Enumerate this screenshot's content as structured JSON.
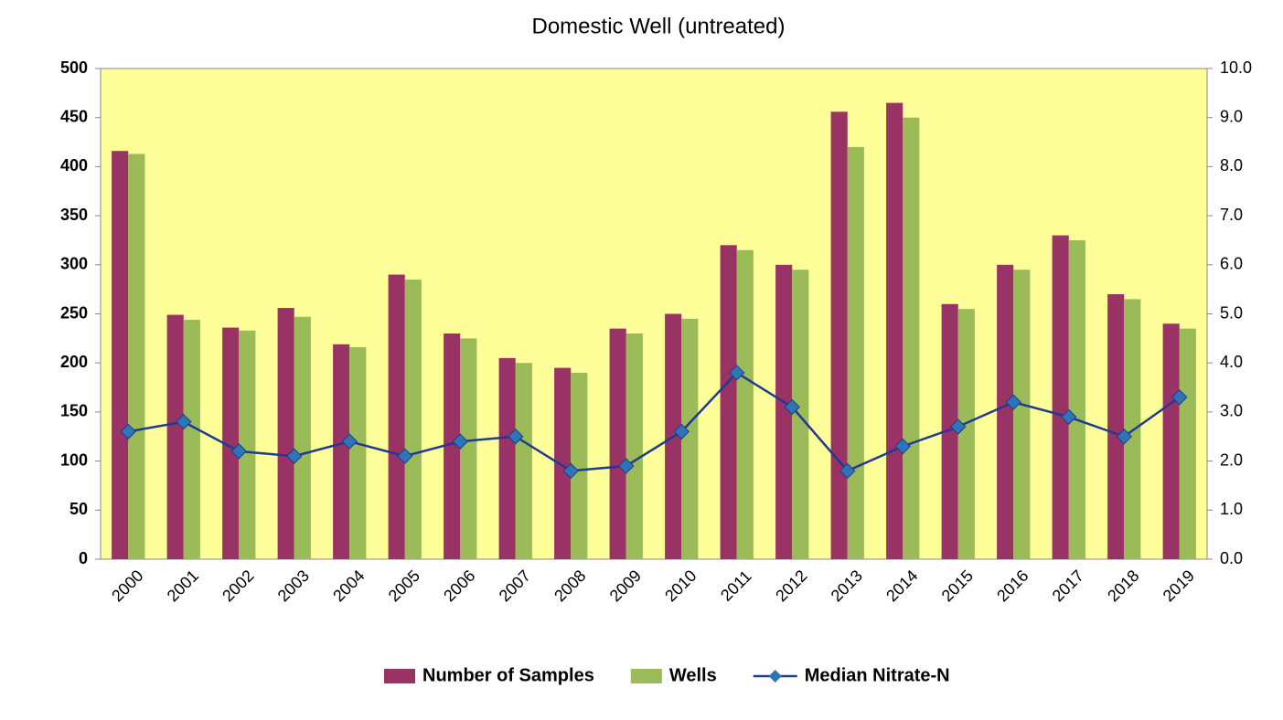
{
  "chart_data": {
    "type": "bar-line",
    "title": "Domestic Well (untreated)",
    "categories": [
      "2000",
      "2001",
      "2002",
      "2003",
      "2004",
      "2005",
      "2006",
      "2007",
      "2008",
      "2009",
      "2010",
      "2011",
      "2012",
      "2013",
      "2014",
      "2015",
      "2016",
      "2017",
      "2018",
      "2019"
    ],
    "series": [
      {
        "name": "Number of Samples",
        "color": "#993366",
        "type": "bar",
        "values": [
          416,
          249,
          236,
          256,
          219,
          290,
          230,
          205,
          195,
          235,
          250,
          320,
          300,
          456,
          465,
          260,
          300,
          330,
          270,
          240
        ]
      },
      {
        "name": "Wells",
        "color": "#9bbb59",
        "type": "bar",
        "values": [
          413,
          244,
          233,
          247,
          216,
          285,
          225,
          200,
          190,
          230,
          245,
          315,
          295,
          420,
          450,
          255,
          295,
          325,
          265,
          235
        ]
      },
      {
        "name": "Median Nitrate-N",
        "color": "#1f3a93",
        "marker_color": "#2e75b6",
        "type": "line",
        "axis": "y2",
        "values": [
          2.6,
          2.8,
          2.2,
          2.1,
          2.4,
          2.1,
          2.4,
          2.5,
          1.8,
          1.9,
          2.6,
          3.8,
          3.1,
          1.8,
          2.3,
          2.7,
          3.2,
          2.9,
          2.5,
          3.3
        ]
      }
    ],
    "ylim": [
      0,
      500
    ],
    "yticks": [
      0,
      50,
      100,
      150,
      200,
      250,
      300,
      350,
      400,
      450,
      500
    ],
    "y2lim": [
      0,
      10
    ],
    "y2ticks": [
      {
        "value": 0,
        "label": "0.0"
      },
      {
        "value": 1,
        "label": "1.0"
      },
      {
        "value": 2,
        "label": "2.0"
      },
      {
        "value": 3,
        "label": "3.0"
      },
      {
        "value": 4,
        "label": "4.0"
      },
      {
        "value": 5,
        "label": "5.0"
      },
      {
        "value": 6,
        "label": "6.0"
      },
      {
        "value": 7,
        "label": "7.0"
      },
      {
        "value": 8,
        "label": "8.0"
      },
      {
        "value": 9,
        "label": "9.0"
      },
      {
        "value": 10,
        "label": "10.0"
      }
    ],
    "plot_background": "#ffff99",
    "legend": "bottom"
  }
}
